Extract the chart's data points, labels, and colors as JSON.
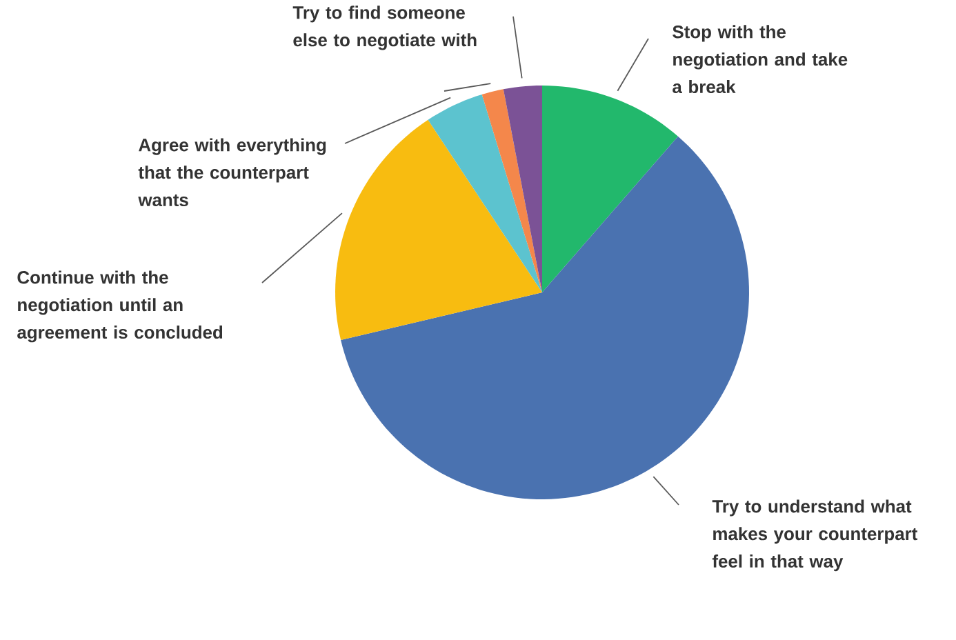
{
  "chart_data": {
    "type": "pie",
    "categories": [
      "Stop with the negotiation and take a break",
      "Try to understand what makes your counterpart feel in that way",
      "Continue with the negotiation until an agreement is concluded",
      "Agree with everything that the counterpart wants",
      "Try to find someone else to negotiate with",
      null
    ],
    "values": [
      11.4,
      59.9,
      19.4,
      4.6,
      1.7,
      3.0
    ],
    "colors": [
      "#22b86c",
      "#4a72b0",
      "#f8bc10",
      "#5cc3cf",
      "#f4874b",
      "#7b5296"
    ]
  }
}
